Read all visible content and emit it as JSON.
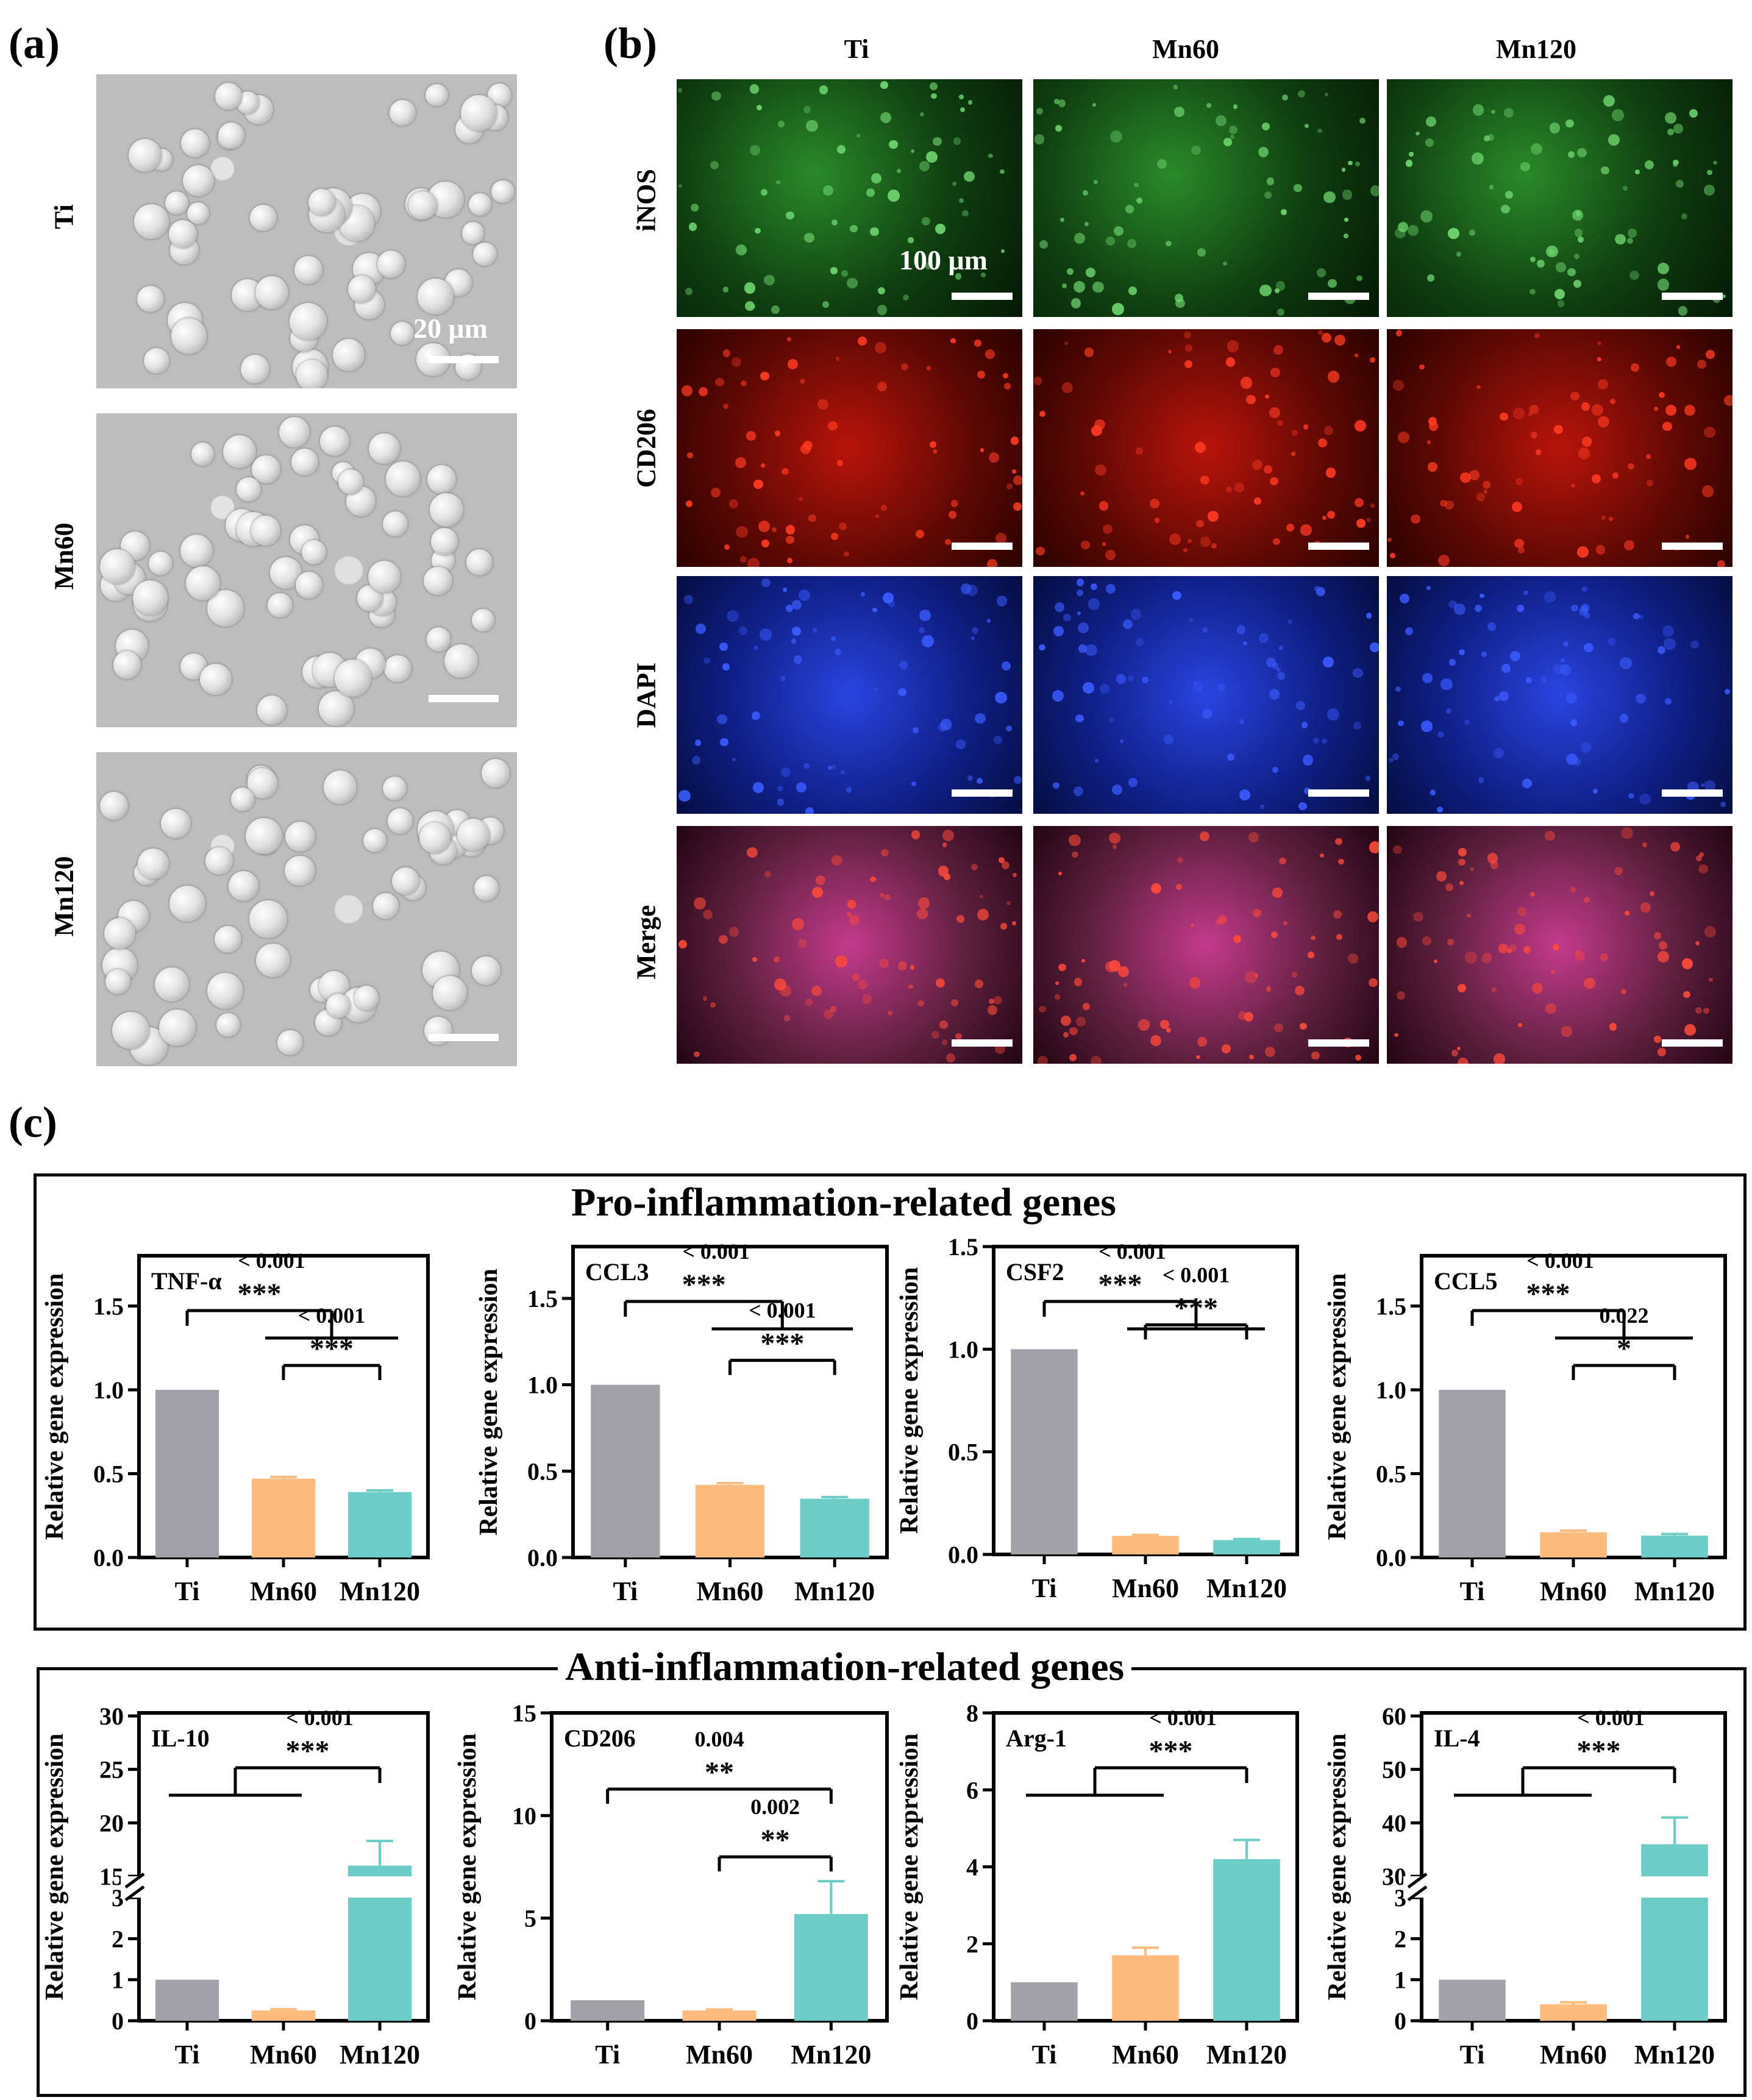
{
  "panel_labels": {
    "a": "(a)",
    "b": "(b)",
    "c": "(c)"
  },
  "panel_a": {
    "rows": [
      "Ti",
      "Mn60",
      "Mn120"
    ],
    "scale_label": "20 μm"
  },
  "panel_b": {
    "columns": [
      "Ti",
      "Mn60",
      "Mn120"
    ],
    "rows": [
      "iNOS",
      "CD206",
      "DAPI",
      "Merge"
    ],
    "scale_label": "100 μm",
    "row_colors": [
      "#1f7a1f",
      "#d81a10",
      "#1a36c4",
      "#b03a7a"
    ]
  },
  "group_titles": {
    "pro": "Pro-inflammation-related genes",
    "anti": "Anti-inflammation-related genes"
  },
  "bar_colors": {
    "Ti": "#a3a1a8",
    "Mn60": "#fdbb7d",
    "Mn120": "#6dcdc6"
  },
  "chart_data": [
    {
      "type": "bar",
      "title": "TNF-α",
      "ylabel": "Relative gene expression",
      "categories": [
        "Ti",
        "Mn60",
        "Mn120"
      ],
      "values": [
        1.0,
        0.47,
        0.39
      ],
      "errors": [
        0,
        0.01,
        0.01
      ],
      "ylim": [
        0,
        1.8
      ],
      "yticks": [
        "0.0",
        "0.5",
        "1.0",
        "1.5"
      ],
      "ytick_values": [
        0,
        0.5,
        1.0,
        1.5
      ],
      "annotations": [
        {
          "text": "< 0.001",
          "stars": "***",
          "type": "group",
          "from": [
            1,
            2
          ],
          "to": 0
        },
        {
          "text": "< 0.001",
          "stars": "***",
          "type": "pair",
          "from": 1,
          "to": 2
        }
      ]
    },
    {
      "type": "bar",
      "title": "CCL3",
      "ylabel": "Relative gene expression",
      "categories": [
        "Ti",
        "Mn60",
        "Mn120"
      ],
      "values": [
        1.0,
        0.42,
        0.34
      ],
      "errors": [
        0,
        0.01,
        0.01
      ],
      "ylim": [
        0,
        1.8
      ],
      "yticks": [
        "0.0",
        "0.5",
        "1.0",
        "1.5"
      ],
      "ytick_values": [
        0,
        0.5,
        1.0,
        1.5
      ],
      "annotations": [
        {
          "text": "< 0.001",
          "stars": "***",
          "type": "group",
          "from": [
            1,
            2
          ],
          "to": 0
        },
        {
          "text": "< 0.001",
          "stars": "***",
          "type": "pair",
          "from": 1,
          "to": 2
        }
      ]
    },
    {
      "type": "bar",
      "title": "CSF2",
      "ylabel": "Relative gene expression",
      "categories": [
        "Ti",
        "Mn60",
        "Mn120"
      ],
      "values": [
        1.0,
        0.09,
        0.07
      ],
      "errors": [
        0,
        0.005,
        0.005
      ],
      "ylim": [
        0,
        1.5
      ],
      "yticks": [
        "0.0",
        "0.5",
        "1.0",
        "1.5"
      ],
      "ytick_values": [
        0,
        0.5,
        1.0,
        1.5
      ],
      "annotations": [
        {
          "text": "< 0.001",
          "stars": "***",
          "type": "group",
          "from": [
            1,
            2
          ],
          "to": 0
        },
        {
          "text": "< 0.001",
          "stars": "***",
          "type": "pair",
          "from": 1,
          "to": 2
        }
      ]
    },
    {
      "type": "bar",
      "title": "CCL5",
      "ylabel": "Relative gene expression",
      "categories": [
        "Ti",
        "Mn60",
        "Mn120"
      ],
      "values": [
        1.0,
        0.15,
        0.13
      ],
      "errors": [
        0,
        0.01,
        0.01
      ],
      "ylim": [
        0,
        1.8
      ],
      "yticks": [
        "0.0",
        "0.5",
        "1.0",
        "1.5"
      ],
      "ytick_values": [
        0,
        0.5,
        1.0,
        1.5
      ],
      "annotations": [
        {
          "text": "< 0.001",
          "stars": "***",
          "type": "group",
          "from": [
            1,
            2
          ],
          "to": 0
        },
        {
          "text": "0.022",
          "stars": "*",
          "type": "pair",
          "from": 1,
          "to": 2
        }
      ]
    },
    {
      "type": "bar",
      "title": "IL-10",
      "ylabel": "Relative gene expression",
      "categories": [
        "Ti",
        "Mn60",
        "Mn120"
      ],
      "values": [
        1.0,
        0.25,
        16.0
      ],
      "errors": [
        0,
        0.03,
        2.3
      ],
      "axis_break": true,
      "lower_range": [
        0,
        3
      ],
      "upper_range": [
        15,
        30
      ],
      "yticks": [
        "0",
        "1",
        "2",
        "3",
        "15",
        "20",
        "25",
        "30"
      ],
      "ytick_values": [
        0,
        1,
        2,
        3,
        15,
        20,
        25,
        30
      ],
      "annotations": [
        {
          "text": "< 0.001",
          "stars": "***",
          "type": "group",
          "from": [
            0,
            1
          ],
          "to": 2
        }
      ]
    },
    {
      "type": "bar",
      "title": "CD206",
      "ylabel": "Relative gene expression",
      "categories": [
        "Ti",
        "Mn60",
        "Mn120"
      ],
      "values": [
        1.0,
        0.5,
        5.2
      ],
      "errors": [
        0,
        0.05,
        1.6
      ],
      "ylim": [
        0,
        15
      ],
      "yticks": [
        "0",
        "5",
        "10",
        "15"
      ],
      "ytick_values": [
        0,
        5,
        10,
        15
      ],
      "annotations": [
        {
          "text": "0.004",
          "stars": "**",
          "type": "pair",
          "from": 0,
          "to": 2
        },
        {
          "text": "0.002",
          "stars": "**",
          "type": "pair",
          "from": 1,
          "to": 2
        }
      ]
    },
    {
      "type": "bar",
      "title": "Arg-1",
      "ylabel": "Relative gene expression",
      "categories": [
        "Ti",
        "Mn60",
        "Mn120"
      ],
      "values": [
        1.0,
        1.7,
        4.2
      ],
      "errors": [
        0,
        0.2,
        0.5
      ],
      "ylim": [
        0,
        8
      ],
      "yticks": [
        "0",
        "2",
        "4",
        "6",
        "8"
      ],
      "ytick_values": [
        0,
        2,
        4,
        6,
        8
      ],
      "annotations": [
        {
          "text": "< 0.001",
          "stars": "***",
          "type": "group",
          "from": [
            0,
            1
          ],
          "to": 2
        }
      ]
    },
    {
      "type": "bar",
      "title": "IL-4",
      "ylabel": "Relative gene expression",
      "categories": [
        "Ti",
        "Mn60",
        "Mn120"
      ],
      "values": [
        1.0,
        0.4,
        36.0
      ],
      "errors": [
        0,
        0.05,
        5.0
      ],
      "axis_break": true,
      "lower_range": [
        0,
        3
      ],
      "upper_range": [
        30,
        60
      ],
      "yticks": [
        "0",
        "1",
        "2",
        "3",
        "30",
        "40",
        "50",
        "60"
      ],
      "ytick_values": [
        0,
        1,
        2,
        3,
        30,
        40,
        50,
        60
      ],
      "annotations": [
        {
          "text": "< 0.001",
          "stars": "***",
          "type": "group",
          "from": [
            0,
            1
          ],
          "to": 2
        }
      ]
    }
  ]
}
